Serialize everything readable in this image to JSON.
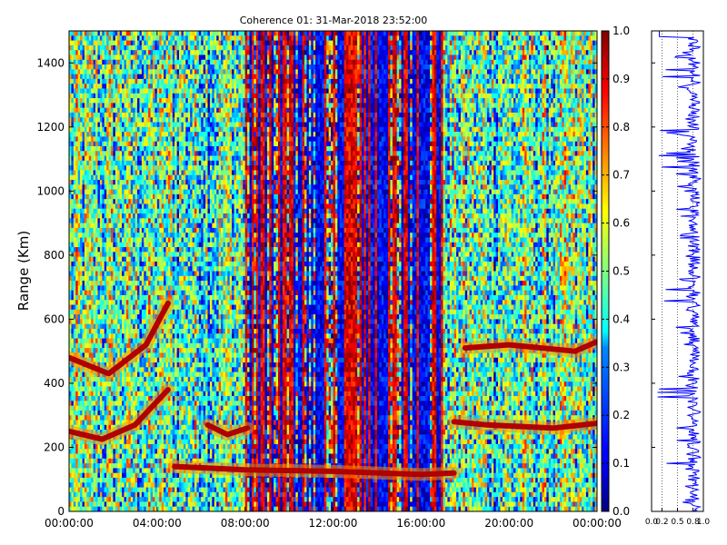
{
  "chart_data": [
    {
      "type": "heatmap",
      "title": "Coherence 01: 31-Mar-2018 23:52:00",
      "xlabel": "",
      "ylabel": "Range (Km)",
      "x_ticks": [
        "00:00:00",
        "04:00:00",
        "08:00:00",
        "12:00:00",
        "16:00:00",
        "20:00:00",
        "00:00:00"
      ],
      "x_range_hours": [
        0,
        24
      ],
      "y_ticks": [
        0,
        200,
        400,
        600,
        800,
        1000,
        1200,
        1400
      ],
      "ylim": [
        0,
        1500
      ],
      "colorbar": {
        "colormap": "jet",
        "range": [
          0,
          1
        ],
        "ticks": [
          "0.0",
          "0.1",
          "0.2",
          "0.3",
          "0.4",
          "0.5",
          "0.6",
          "0.7",
          "0.8",
          "0.9",
          "1.0"
        ]
      },
      "features": [
        {
          "description": "red coherence band",
          "points_hours_km": [
            [
              0,
              250
            ],
            [
              1.5,
              225
            ],
            [
              3,
              270
            ],
            [
              4.5,
              380
            ]
          ]
        },
        {
          "description": "red coherence band",
          "points_hours_km": [
            [
              0,
              480
            ],
            [
              1.8,
              430
            ],
            [
              3.5,
              520
            ],
            [
              4.5,
              650
            ]
          ]
        },
        {
          "description": "red coherence band",
          "points_hours_km": [
            [
              6.3,
              270
            ],
            [
              7.2,
              240
            ],
            [
              8.1,
              260
            ]
          ]
        },
        {
          "description": "red coherence band",
          "points_hours_km": [
            [
              4.8,
              140
            ],
            [
              8,
              130
            ],
            [
              12,
              125
            ],
            [
              16,
              115
            ],
            [
              17.5,
              120
            ]
          ]
        },
        {
          "description": "red coherence band",
          "points_hours_km": [
            [
              17.5,
              280
            ],
            [
              19,
              270
            ],
            [
              22,
              260
            ],
            [
              24,
              275
            ]
          ]
        },
        {
          "description": "red coherence band",
          "points_hours_km": [
            [
              18,
              510
            ],
            [
              20,
              520
            ],
            [
              23,
              500
            ],
            [
              24,
              530
            ]
          ]
        }
      ],
      "low_coherence_hours": [
        8,
        17
      ]
    },
    {
      "type": "line",
      "x_ticks": [
        "0.0",
        "0.2",
        "0.5",
        "0.8",
        "1.0"
      ],
      "xlim": [
        0,
        1
      ],
      "ylim": [
        0,
        1500
      ],
      "grid_x": [
        0.2,
        0.5,
        0.8
      ],
      "color": "#0000ff"
    }
  ]
}
